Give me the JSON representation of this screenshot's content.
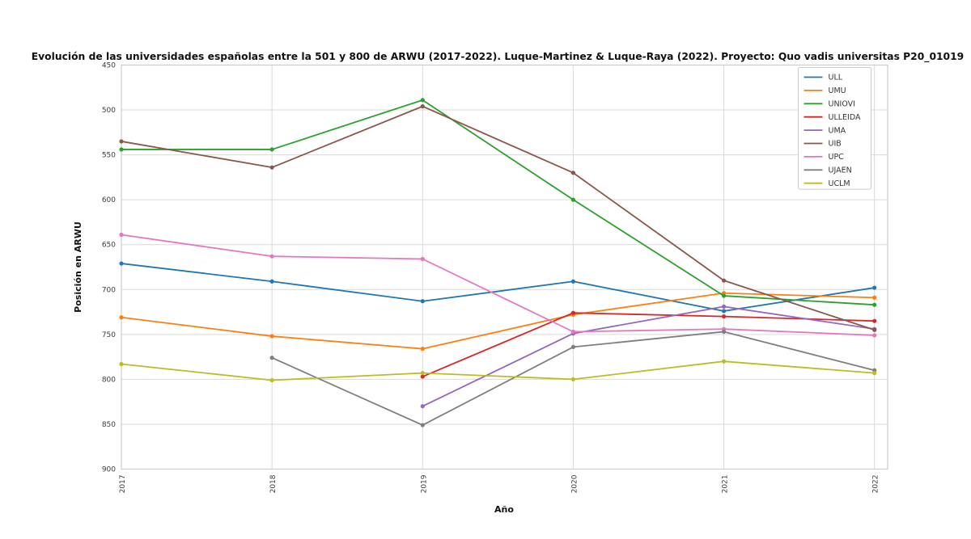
{
  "chart_data": {
    "type": "line",
    "title": "Evolución de las universidades españolas entre la 501 y 800 de ARWU (2017-2022). Luque-Martinez & Luque-Raya (2022). Proyecto: Quo vadis universitas P20_01019",
    "xlabel": "Año",
    "ylabel": "Posición en ARWU",
    "x": [
      2017,
      2018,
      2019,
      2020,
      2021,
      2022
    ],
    "x_tick_labels": [
      "2017",
      "2018",
      "2019",
      "2020",
      "2021",
      "2022"
    ],
    "y_ticks": [
      450,
      500,
      550,
      600,
      650,
      700,
      750,
      800,
      850,
      900
    ],
    "ylim": [
      450,
      900
    ],
    "y_axis_inverted": true,
    "grid": true,
    "legend_position": "upper right",
    "series": [
      {
        "name": "ULL",
        "color": "#1f77b4",
        "values": [
          671,
          691,
          713,
          691,
          724,
          698
        ]
      },
      {
        "name": "UMU",
        "color": "#ff7f0e",
        "values": [
          731,
          752,
          766,
          728,
          704,
          709
        ]
      },
      {
        "name": "UNIOVI",
        "color": "#2ca02c",
        "values": [
          544,
          544,
          489,
          600,
          707,
          717
        ]
      },
      {
        "name": "ULLEIDA",
        "color": "#d62728",
        "values": [
          null,
          null,
          797,
          726,
          730,
          735
        ]
      },
      {
        "name": "UMA",
        "color": "#9467bd",
        "values": [
          null,
          null,
          830,
          749,
          719,
          744
        ]
      },
      {
        "name": "UIB",
        "color": "#8c564b",
        "values": [
          535,
          564,
          496,
          570,
          690,
          745
        ]
      },
      {
        "name": "UPC",
        "color": "#e377c2",
        "values": [
          639,
          663,
          666,
          747,
          744,
          751
        ]
      },
      {
        "name": "UJAEN",
        "color": "#7f7f7f",
        "values": [
          null,
          776,
          851,
          764,
          747,
          790
        ]
      },
      {
        "name": "UCLM",
        "color": "#bcbd22",
        "values": [
          783,
          801,
          793,
          800,
          780,
          793
        ]
      }
    ],
    "colors": {
      "grid": "#d9d9d9",
      "plot_border": "#cccccc",
      "background": "#ffffff",
      "tick_text": "#3b3b3b"
    }
  }
}
